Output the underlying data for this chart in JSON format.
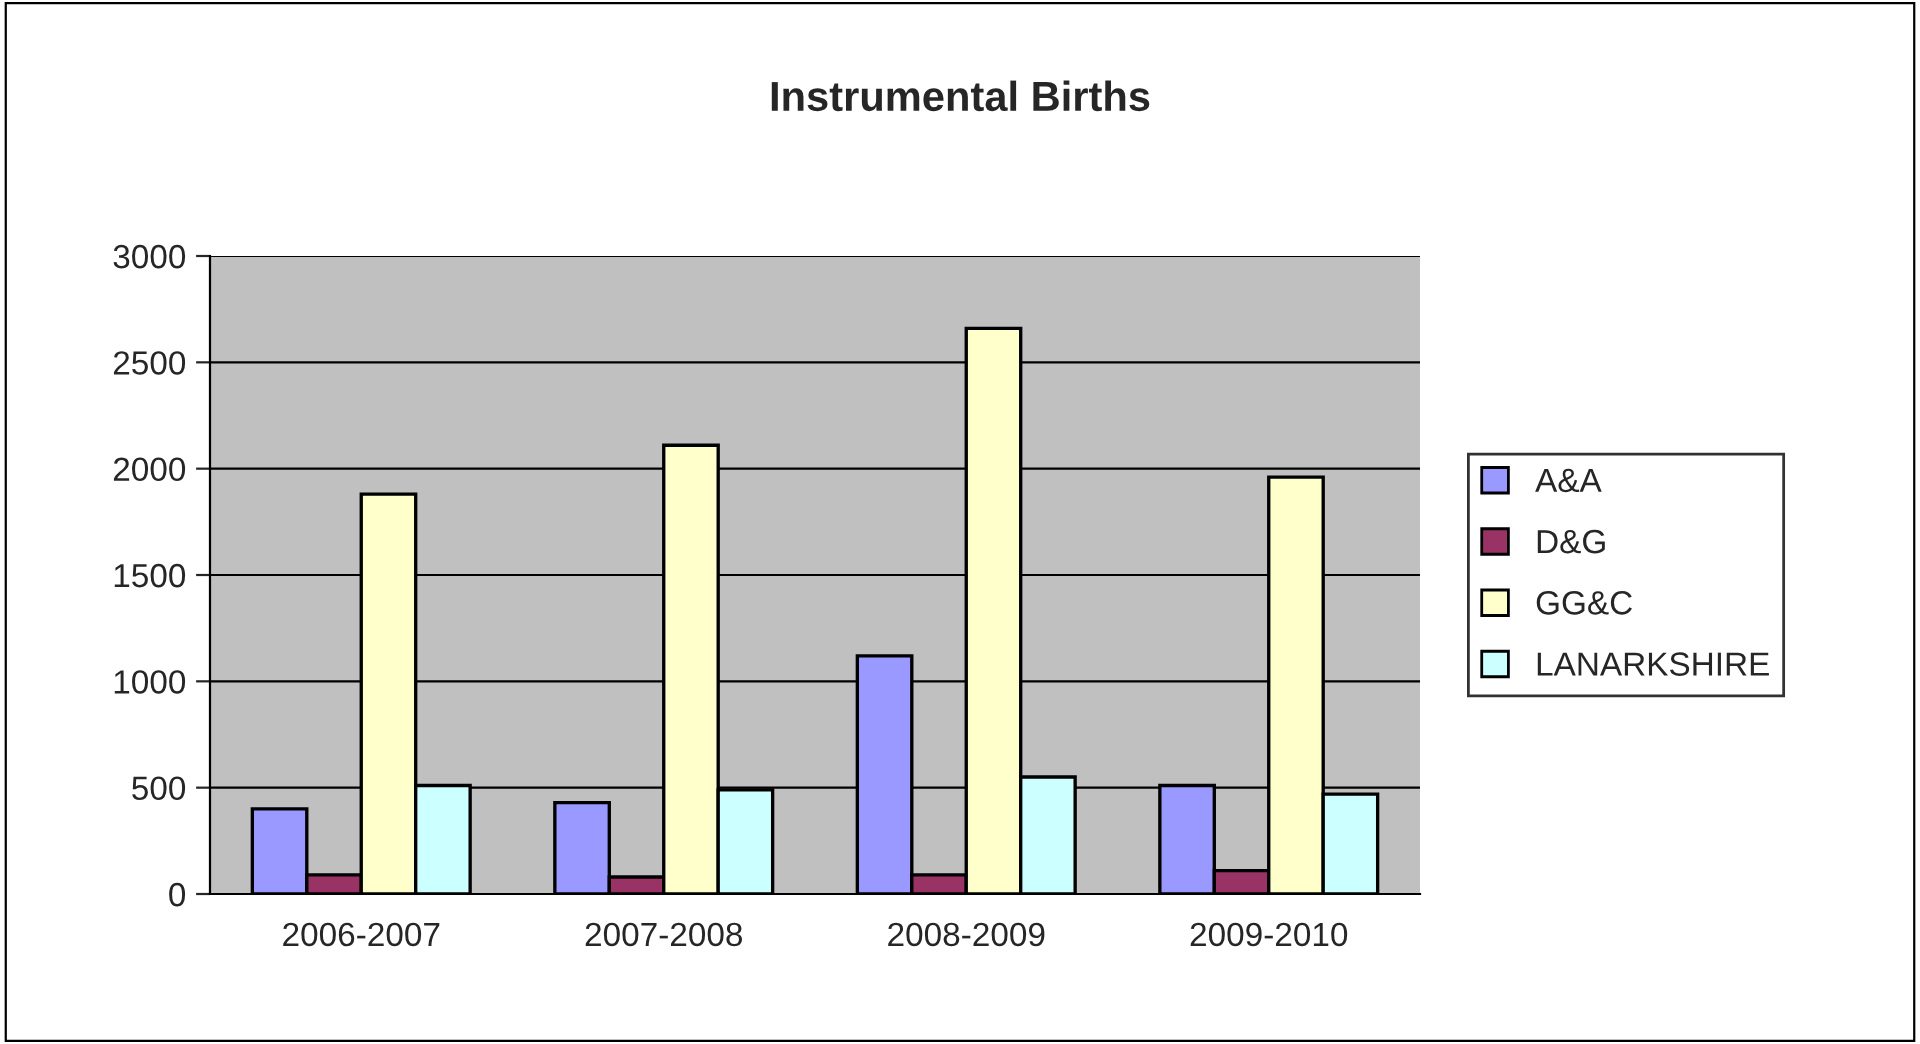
{
  "chart_data": {
    "type": "bar",
    "title": "Instrumental Births",
    "categories": [
      "2006-2007",
      "2007-2008",
      "2008-2009",
      "2009-2010"
    ],
    "series": [
      {
        "name": "A&A",
        "color": "#9999ff",
        "values": [
          400,
          430,
          1120,
          510
        ]
      },
      {
        "name": "D&G",
        "color": "#993366",
        "values": [
          90,
          80,
          90,
          110
        ]
      },
      {
        "name": "GG&C",
        "color": "#ffffcc",
        "values": [
          1880,
          2110,
          2660,
          1960
        ]
      },
      {
        "name": "LANARKSHIRE",
        "color": "#ccffff",
        "values": [
          510,
          490,
          550,
          470
        ]
      }
    ],
    "ylim": [
      0,
      3000
    ],
    "yticks": [
      0,
      500,
      1000,
      1500,
      2000,
      2500,
      3000
    ],
    "grid": "y",
    "legend": "right"
  }
}
